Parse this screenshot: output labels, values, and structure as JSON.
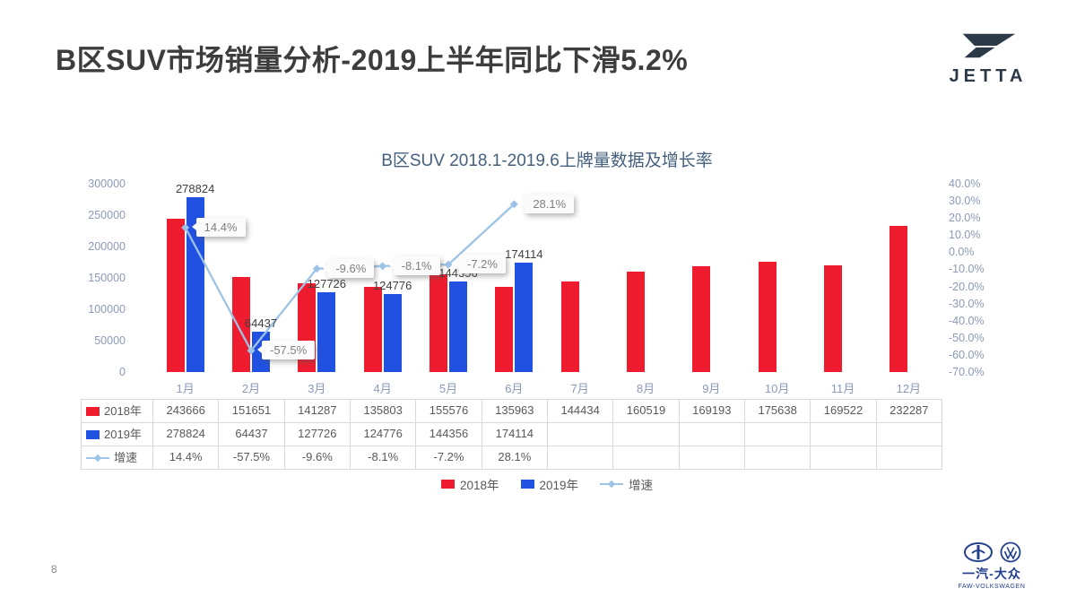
{
  "header": {
    "title": "B区SUV市场销量分析-2019上半年同比下滑5.2%",
    "logo_text": "JETTA"
  },
  "chart_data": {
    "type": "bar+line combo",
    "title": "B区SUV 2018.1-2019.6上牌量数据及增长率",
    "categories": [
      "1月",
      "2月",
      "3月",
      "4月",
      "5月",
      "6月",
      "7月",
      "8月",
      "9月",
      "10月",
      "11月",
      "12月"
    ],
    "series": [
      {
        "name": "2018年",
        "type": "bar",
        "color": "#ee1c2e",
        "values": [
          243666,
          151651,
          141287,
          135803,
          155576,
          135963,
          144434,
          160519,
          169193,
          175638,
          169522,
          232287
        ]
      },
      {
        "name": "2019年",
        "type": "bar",
        "color": "#2151e0",
        "values": [
          278824,
          64437,
          127726,
          124776,
          144356,
          174114,
          null,
          null,
          null,
          null,
          null,
          null
        ]
      },
      {
        "name": "增速",
        "type": "line",
        "color": "#9dc3e6",
        "unit": "%",
        "values": [
          14.4,
          -57.5,
          -9.6,
          -8.1,
          -7.2,
          28.1,
          null,
          null,
          null,
          null,
          null,
          null
        ]
      }
    ],
    "left_axis": {
      "min": 0,
      "max": 300000,
      "ticks": [
        "300000",
        "250000",
        "200000",
        "150000",
        "100000",
        "50000",
        "0"
      ]
    },
    "right_axis": {
      "min": -70,
      "max": 40,
      "ticks": [
        "40.0%",
        "30.0%",
        "20.0%",
        "10.0%",
        "0.0%",
        "-10.0%",
        "-20.0%",
        "-30.0%",
        "-40.0%",
        "-50.0%",
        "-60.0%",
        "-70.0%"
      ]
    },
    "legend": [
      "2018年",
      "2019年",
      "增速"
    ],
    "legend_position": "bottom",
    "grid": false
  },
  "footer": {
    "page_number": "8",
    "brand_cn": "一汽-大众",
    "brand_en": "FAW-VOLKSWAGEN"
  }
}
